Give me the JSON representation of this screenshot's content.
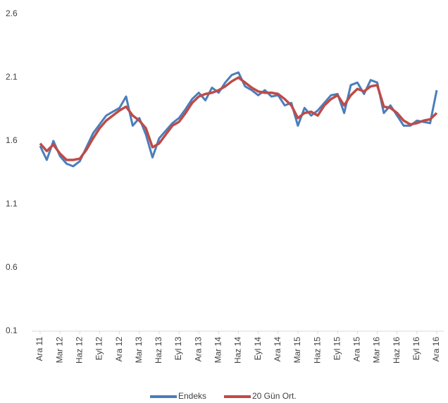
{
  "chart_data": {
    "type": "line",
    "categories": [
      "Ara 11",
      null,
      null,
      "Mar 12",
      null,
      null,
      "Haz 12",
      null,
      null,
      "Eyl 12",
      null,
      null,
      "Ara 12",
      null,
      null,
      "Mar 13",
      null,
      null,
      "Haz 13",
      null,
      null,
      "Eyl 13",
      null,
      null,
      "Ara 13",
      null,
      null,
      "Mar 14",
      null,
      null,
      "Haz 14",
      null,
      null,
      "Eyl 14",
      null,
      null,
      "Ara 14",
      null,
      null,
      "Mar 15",
      null,
      null,
      "Haz 15",
      null,
      null,
      "Eyl 15",
      null,
      null,
      "Ara 15",
      null,
      null,
      "Mar 16",
      null,
      null,
      "Haz 16",
      null,
      null,
      "Eyl 16",
      null,
      null,
      "Ara 16"
    ],
    "series": [
      {
        "name": "Endeks",
        "color": "#4a7ebb",
        "values": [
          1.56,
          1.45,
          1.6,
          1.48,
          1.42,
          1.4,
          1.44,
          1.55,
          1.66,
          1.73,
          1.8,
          1.83,
          1.86,
          1.95,
          1.72,
          1.78,
          1.65,
          1.47,
          1.62,
          1.68,
          1.74,
          1.78,
          1.85,
          1.93,
          1.98,
          1.92,
          2.02,
          1.98,
          2.06,
          2.12,
          2.14,
          2.03,
          2.0,
          1.96,
          2.0,
          1.95,
          1.96,
          1.88,
          1.9,
          1.72,
          1.86,
          1.8,
          1.84,
          1.9,
          1.96,
          1.97,
          1.82,
          2.04,
          2.06,
          1.97,
          2.08,
          2.06,
          1.82,
          1.88,
          1.8,
          1.72,
          1.72,
          1.76,
          1.75,
          1.74,
          2.0
        ]
      },
      {
        "name": "20 Gün Ort.",
        "color": "#be4b48",
        "values": [
          1.58,
          1.52,
          1.57,
          1.5,
          1.45,
          1.45,
          1.46,
          1.53,
          1.62,
          1.7,
          1.76,
          1.8,
          1.84,
          1.87,
          1.8,
          1.76,
          1.7,
          1.55,
          1.58,
          1.65,
          1.72,
          1.75,
          1.82,
          1.9,
          1.95,
          1.97,
          1.98,
          2.0,
          2.03,
          2.07,
          2.1,
          2.06,
          2.02,
          1.99,
          1.98,
          1.98,
          1.97,
          1.93,
          1.88,
          1.78,
          1.82,
          1.83,
          1.8,
          1.88,
          1.93,
          1.96,
          1.88,
          1.96,
          2.01,
          1.99,
          2.03,
          2.04,
          1.87,
          1.86,
          1.82,
          1.76,
          1.73,
          1.74,
          1.76,
          1.77,
          1.82
        ]
      }
    ],
    "ylim": [
      0.1,
      2.6
    ],
    "yticks": [
      0.1,
      0.6,
      1.1,
      1.6,
      2.1,
      2.6
    ],
    "grid": false,
    "legend": "bottom"
  }
}
